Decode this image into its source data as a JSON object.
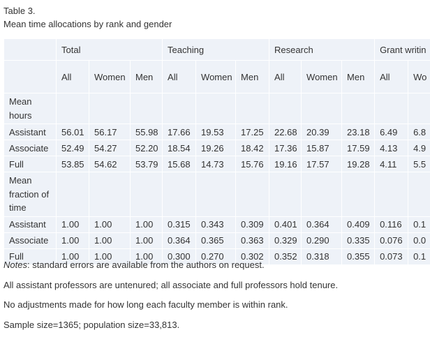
{
  "header": {
    "title": "Table 3.",
    "caption": "Mean time allocations by rank and gender"
  },
  "table": {
    "groups": [
      "Total",
      "Teaching",
      "Research",
      "Grant writin"
    ],
    "subheaders": [
      "All",
      "Women",
      "Men",
      "All",
      "Women",
      "Men",
      "All",
      "Women",
      "Men",
      "All",
      "Wo"
    ],
    "sections": [
      {
        "label": "Mean hours",
        "rows": [
          {
            "label": "Assistant",
            "values": [
              "56.01",
              "56.17",
              "55.98",
              "17.66",
              "19.53",
              "17.25",
              "22.68",
              "20.39",
              "23.18",
              "6.49",
              "6.8"
            ]
          },
          {
            "label": "Associate",
            "values": [
              "52.49",
              "54.27",
              "52.20",
              "18.54",
              "19.26",
              "18.42",
              "17.36",
              "15.87",
              "17.59",
              "4.13",
              "4.9"
            ]
          },
          {
            "label": "Full",
            "values": [
              "53.85",
              "54.62",
              "53.79",
              "15.68",
              "14.73",
              "15.76",
              "19.16",
              "17.57",
              "19.28",
              "4.11",
              "5.5"
            ]
          }
        ]
      },
      {
        "label": "Mean fraction of time",
        "rows": [
          {
            "label": "Assistant",
            "values": [
              "1.00",
              "1.00",
              "1.00",
              "0.315",
              "0.343",
              "0.309",
              "0.401",
              "0.364",
              "0.409",
              "0.116",
              "0.1"
            ]
          },
          {
            "label": "Associate",
            "values": [
              "1.00",
              "1.00",
              "1.00",
              "0.364",
              "0.365",
              "0.363",
              "0.329",
              "0.290",
              "0.335",
              "0.076",
              "0.0"
            ]
          },
          {
            "label": "Full",
            "values": [
              "1.00",
              "1.00",
              "1.00",
              "0.300",
              "0.270",
              "0.302",
              "0.352",
              "0.318",
              "0.355",
              "0.073",
              "0.1"
            ]
          }
        ]
      }
    ]
  },
  "notes": {
    "label": "Notes",
    "first": ": standard errors are available from the authors on request.",
    "lines": [
      "All assistant professors are untenured; all associate and full professors hold tenure.",
      "No adjustments made for how long each faculty member is within rank.",
      "Sample size=1365; population size=33,813."
    ]
  }
}
